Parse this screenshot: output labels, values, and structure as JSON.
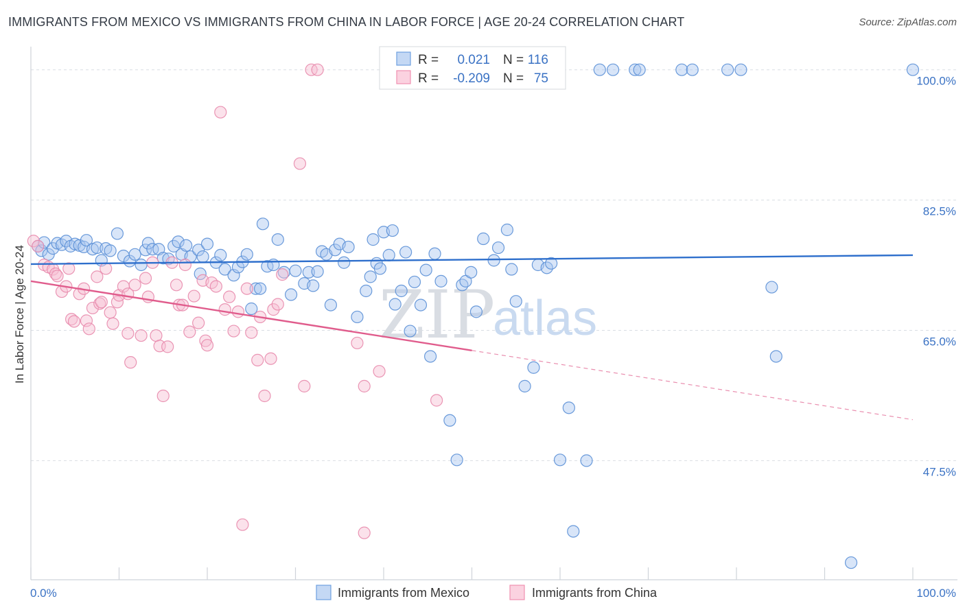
{
  "title": "IMMIGRANTS FROM MEXICO VS IMMIGRANTS FROM CHINA IN LABOR FORCE | AGE 20-24 CORRELATION CHART",
  "source": "Source: ZipAtlas.com",
  "watermark": {
    "zip": "ZIP",
    "atlas": "atlas"
  },
  "legend_top": [
    {
      "r_label": "R =",
      "r_value": "0.021",
      "n_label": "N =",
      "n_value": "116",
      "color": "#6fa0e0"
    },
    {
      "r_label": "R =",
      "r_value": "-0.209",
      "n_label": "N =",
      "n_value": "75",
      "color": "#ef8fb0"
    }
  ],
  "colors": {
    "mexico_fill": "#a9c6ef",
    "mexico_stroke": "#5a8fd6",
    "mexico_line": "#2e6fcc",
    "china_fill": "#f7bfd2",
    "china_stroke": "#e88aac",
    "china_line": "#e05c8c",
    "grid": "#d9dde3",
    "axis_label": "#3a72c4"
  },
  "chart_data": {
    "type": "scatter",
    "title": "IMMIGRANTS FROM MEXICO VS IMMIGRANTS FROM CHINA IN LABOR FORCE | AGE 20-24 CORRELATION CHART",
    "xlabel": "",
    "ylabel": "In Labor Force | Age 20-24",
    "xlim": [
      0,
      100
    ],
    "ylim": [
      31.5,
      102
    ],
    "x_tick_labels": [
      "0.0%",
      "100.0%"
    ],
    "y_ticks": [
      47.5,
      65.0,
      82.5,
      100.0
    ],
    "y_tick_labels": [
      "47.5%",
      "65.0%",
      "82.5%",
      "100.0%"
    ],
    "grid": true,
    "legend_placement": "bottom",
    "series": [
      {
        "name": "Immigrants from Mexico",
        "r": 0.021,
        "n": 116,
        "trend": {
          "x": [
            0,
            100
          ],
          "y": [
            73.9,
            75.1
          ]
        },
        "points": [
          [
            0.8,
            76.3
          ],
          [
            1.2,
            75.7
          ],
          [
            1.5,
            76.8
          ],
          [
            2.0,
            75.2
          ],
          [
            2.5,
            76.0
          ],
          [
            3.0,
            76.7
          ],
          [
            3.5,
            76.5
          ],
          [
            4.0,
            77.0
          ],
          [
            4.5,
            76.3
          ],
          [
            5.0,
            76.6
          ],
          [
            5.5,
            76.4
          ],
          [
            6.0,
            76.2
          ],
          [
            6.3,
            77.1
          ],
          [
            7.0,
            75.9
          ],
          [
            7.5,
            76.1
          ],
          [
            8.0,
            74.4
          ],
          [
            8.5,
            76.0
          ],
          [
            9.0,
            75.7
          ],
          [
            9.8,
            78.0
          ],
          [
            10.5,
            75.0
          ],
          [
            11.2,
            74.3
          ],
          [
            11.8,
            75.2
          ],
          [
            12.5,
            73.8
          ],
          [
            13.0,
            75.8
          ],
          [
            13.3,
            76.7
          ],
          [
            13.8,
            75.9
          ],
          [
            14.5,
            75.9
          ],
          [
            15.0,
            74.7
          ],
          [
            15.6,
            74.6
          ],
          [
            16.2,
            76.3
          ],
          [
            16.7,
            76.9
          ],
          [
            17.1,
            75.2
          ],
          [
            17.6,
            76.4
          ],
          [
            18.1,
            74.9
          ],
          [
            19.0,
            75.8
          ],
          [
            19.2,
            72.6
          ],
          [
            19.5,
            74.9
          ],
          [
            20.0,
            76.6
          ],
          [
            21.0,
            74.1
          ],
          [
            21.5,
            75.1
          ],
          [
            22.0,
            73.2
          ],
          [
            23.0,
            72.4
          ],
          [
            23.5,
            73.5
          ],
          [
            24.0,
            74.2
          ],
          [
            24.5,
            75.2
          ],
          [
            25.0,
            67.9
          ],
          [
            25.5,
            70.6
          ],
          [
            26.0,
            70.6
          ],
          [
            26.3,
            79.3
          ],
          [
            26.8,
            73.6
          ],
          [
            27.5,
            73.8
          ],
          [
            28.0,
            77.2
          ],
          [
            28.7,
            72.8
          ],
          [
            29.5,
            69.8
          ],
          [
            30.0,
            73.0
          ],
          [
            31.0,
            71.3
          ],
          [
            31.5,
            72.8
          ],
          [
            32.0,
            71.0
          ],
          [
            32.5,
            72.9
          ],
          [
            33.0,
            75.6
          ],
          [
            33.5,
            75.2
          ],
          [
            34.0,
            68.4
          ],
          [
            34.5,
            75.8
          ],
          [
            35.0,
            76.6
          ],
          [
            35.5,
            74.1
          ],
          [
            36.0,
            76.2
          ],
          [
            37.0,
            66.8
          ],
          [
            38.0,
            70.3
          ],
          [
            38.5,
            72.2
          ],
          [
            38.8,
            77.2
          ],
          [
            39.2,
            74.0
          ],
          [
            39.6,
            73.3
          ],
          [
            40.0,
            78.2
          ],
          [
            40.6,
            75.1
          ],
          [
            41.0,
            78.4
          ],
          [
            41.3,
            68.5
          ],
          [
            42.0,
            70.3
          ],
          [
            42.5,
            75.5
          ],
          [
            43.0,
            64.9
          ],
          [
            43.5,
            71.5
          ],
          [
            44.2,
            68.4
          ],
          [
            44.8,
            73.1
          ],
          [
            45.3,
            61.5
          ],
          [
            45.8,
            75.3
          ],
          [
            46.5,
            71.6
          ],
          [
            47.5,
            52.9
          ],
          [
            48.3,
            47.6
          ],
          [
            48.9,
            71.1
          ],
          [
            49.3,
            71.6
          ],
          [
            49.9,
            72.8
          ],
          [
            50.5,
            67.5
          ],
          [
            51.3,
            77.3
          ],
          [
            52.5,
            74.4
          ],
          [
            53.0,
            76.1
          ],
          [
            54.0,
            78.5
          ],
          [
            54.5,
            73.2
          ],
          [
            55.0,
            68.9
          ],
          [
            56.0,
            57.5
          ],
          [
            57.0,
            60.0
          ],
          [
            57.5,
            73.8
          ],
          [
            58.5,
            73.4
          ],
          [
            59.0,
            74.0
          ],
          [
            60.0,
            47.6
          ],
          [
            61.0,
            54.6
          ],
          [
            61.5,
            38.0
          ],
          [
            63.0,
            47.5
          ],
          [
            64.5,
            100.0
          ],
          [
            66.0,
            100.0
          ],
          [
            68.5,
            100.0
          ],
          [
            69.0,
            100.0
          ],
          [
            73.8,
            100.0
          ],
          [
            75.0,
            100.0
          ],
          [
            79.0,
            100.0
          ],
          [
            80.5,
            100.0
          ],
          [
            84.0,
            70.8
          ],
          [
            84.5,
            61.5
          ],
          [
            93.0,
            33.8
          ],
          [
            100.0,
            100.0
          ]
        ]
      },
      {
        "name": "Immigrants from China",
        "r": -0.209,
        "n": 75,
        "trend": {
          "x": [
            0,
            50
          ],
          "y": [
            71.6,
            62.3
          ]
        },
        "trend_extension": {
          "x": [
            50,
            100
          ],
          "y": [
            62.3,
            53.0
          ]
        },
        "points": [
          [
            0.3,
            77.0
          ],
          [
            0.8,
            76.3
          ],
          [
            1.5,
            73.8
          ],
          [
            2.0,
            73.5
          ],
          [
            2.5,
            73.2
          ],
          [
            2.8,
            72.6
          ],
          [
            3.0,
            72.3
          ],
          [
            3.5,
            70.2
          ],
          [
            4.0,
            70.9
          ],
          [
            4.3,
            73.3
          ],
          [
            4.6,
            66.5
          ],
          [
            4.9,
            66.2
          ],
          [
            5.5,
            69.9
          ],
          [
            6.0,
            70.6
          ],
          [
            6.3,
            66.3
          ],
          [
            6.6,
            65.2
          ],
          [
            7.0,
            68.0
          ],
          [
            7.5,
            72.2
          ],
          [
            7.8,
            68.6
          ],
          [
            8.0,
            68.8
          ],
          [
            8.5,
            73.3
          ],
          [
            9.0,
            67.4
          ],
          [
            9.3,
            65.9
          ],
          [
            9.8,
            68.8
          ],
          [
            10.0,
            69.7
          ],
          [
            10.5,
            70.9
          ],
          [
            11.0,
            69.9
          ],
          [
            11.0,
            64.6
          ],
          [
            11.3,
            60.7
          ],
          [
            11.8,
            71.1
          ],
          [
            12.5,
            64.3
          ],
          [
            13.0,
            72.0
          ],
          [
            13.3,
            69.5
          ],
          [
            13.8,
            74.1
          ],
          [
            14.2,
            64.3
          ],
          [
            14.6,
            62.9
          ],
          [
            15.0,
            56.2
          ],
          [
            15.5,
            62.8
          ],
          [
            16.0,
            74.1
          ],
          [
            16.5,
            71.1
          ],
          [
            16.8,
            68.4
          ],
          [
            17.2,
            68.4
          ],
          [
            17.5,
            73.8
          ],
          [
            18.0,
            64.8
          ],
          [
            18.5,
            69.6
          ],
          [
            19.0,
            66.0
          ],
          [
            19.5,
            71.7
          ],
          [
            19.8,
            63.6
          ],
          [
            20.0,
            63.0
          ],
          [
            20.5,
            71.4
          ],
          [
            21.0,
            70.9
          ],
          [
            21.5,
            94.3
          ],
          [
            22.0,
            67.8
          ],
          [
            22.5,
            69.5
          ],
          [
            23.0,
            64.9
          ],
          [
            23.5,
            67.5
          ],
          [
            24.5,
            70.6
          ],
          [
            25.0,
            64.7
          ],
          [
            25.7,
            61.0
          ],
          [
            26.0,
            66.8
          ],
          [
            26.5,
            56.2
          ],
          [
            27.2,
            61.2
          ],
          [
            27.5,
            67.8
          ],
          [
            28.0,
            68.5
          ],
          [
            28.5,
            72.5
          ],
          [
            30.5,
            87.4
          ],
          [
            31.0,
            57.5
          ],
          [
            31.8,
            100.0
          ],
          [
            32.5,
            100.0
          ],
          [
            37.0,
            63.3
          ],
          [
            37.8,
            57.5
          ],
          [
            37.8,
            37.8
          ],
          [
            39.5,
            59.5
          ],
          [
            46.0,
            55.6
          ],
          [
            24.0,
            38.9
          ]
        ]
      }
    ]
  },
  "legend_bottom": [
    {
      "label": "Immigrants from Mexico"
    },
    {
      "label": "Immigrants from China"
    }
  ]
}
